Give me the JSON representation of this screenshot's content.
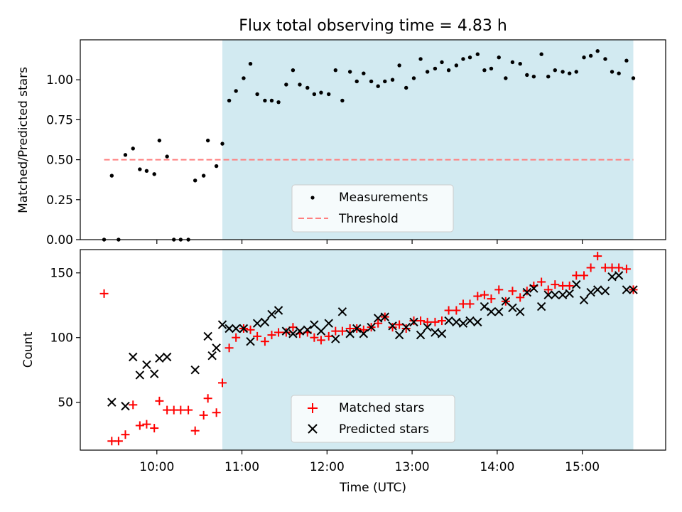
{
  "chart_data": [
    {
      "type": "scatter",
      "title": "Flux total observing time = 4.83 h",
      "xlabel": "",
      "ylabel": "Matched/Predicted stars",
      "ylim": [
        0,
        1.25
      ],
      "yticks": [
        "0.00",
        "0.25",
        "0.50",
        "0.75",
        "1.00"
      ],
      "shaded_span_hours": [
        10.77,
        15.6
      ],
      "shade_color": "#add8e6",
      "threshold": {
        "name": "Threshold",
        "value": 0.5,
        "x_range": [
          9.38,
          15.6
        ],
        "color": "#ff7f7f",
        "style": "dashed"
      },
      "legend": {
        "location": "lower center",
        "entries": [
          "Measurements",
          "Threshold"
        ]
      },
      "series": [
        {
          "name": "Measurements",
          "color": "#000000",
          "marker": "dot",
          "x": [
            9.38,
            9.47,
            9.55,
            9.63,
            9.72,
            9.8,
            9.88,
            9.97,
            10.03,
            10.12,
            10.2,
            10.28,
            10.37,
            10.45,
            10.55,
            10.6,
            10.7,
            10.77,
            10.85,
            10.93,
            11.02,
            11.1,
            11.18,
            11.27,
            11.35,
            11.43,
            11.52,
            11.6,
            11.68,
            11.77,
            11.85,
            11.93,
            12.02,
            12.1,
            12.18,
            12.27,
            12.35,
            12.43,
            12.52,
            12.6,
            12.68,
            12.77,
            12.85,
            12.93,
            13.02,
            13.1,
            13.18,
            13.27,
            13.35,
            13.43,
            13.52,
            13.6,
            13.68,
            13.77,
            13.85,
            13.93,
            14.02,
            14.1,
            14.18,
            14.27,
            14.35,
            14.43,
            14.52,
            14.6,
            14.68,
            14.77,
            14.85,
            14.93,
            15.02,
            15.1,
            15.18,
            15.27,
            15.35,
            15.43,
            15.52,
            15.6
          ],
          "y": [
            0.0,
            0.4,
            0.0,
            0.53,
            0.57,
            0.44,
            0.43,
            0.41,
            0.62,
            0.52,
            0.0,
            0.0,
            0.0,
            0.37,
            0.4,
            0.62,
            0.46,
            0.6,
            0.87,
            0.93,
            1.01,
            1.1,
            0.91,
            0.87,
            0.87,
            0.86,
            0.97,
            1.06,
            0.97,
            0.95,
            0.91,
            0.92,
            0.91,
            1.06,
            0.87,
            1.05,
            0.99,
            1.04,
            0.99,
            0.96,
            0.99,
            1.0,
            1.09,
            0.95,
            1.01,
            1.13,
            1.05,
            1.07,
            1.11,
            1.06,
            1.09,
            1.13,
            1.14,
            1.16,
            1.06,
            1.07,
            1.14,
            1.01,
            1.11,
            1.1,
            1.03,
            1.02,
            1.16,
            1.02,
            1.06,
            1.05,
            1.04,
            1.05,
            1.14,
            1.15,
            1.18,
            1.13,
            1.05,
            1.04,
            1.12,
            1.01
          ]
        }
      ]
    },
    {
      "type": "scatter",
      "title": "",
      "xlabel": "Time (UTC)",
      "ylabel": "Count",
      "ylim": [
        13,
        168
      ],
      "yticks": [
        "50",
        "100",
        "150"
      ],
      "xlim_hours": [
        9.1,
        15.98
      ],
      "xticks": [
        "10:00",
        "11:00",
        "12:00",
        "13:00",
        "14:00",
        "15:00"
      ],
      "shaded_span_hours": [
        10.77,
        15.6
      ],
      "shade_color": "#add8e6",
      "legend": {
        "location": "lower center",
        "entries": [
          "Matched stars",
          "Predicted stars"
        ]
      },
      "series": [
        {
          "name": "Matched stars",
          "color": "#ff0000",
          "marker": "plus",
          "x": [
            9.38,
            9.47,
            9.55,
            9.63,
            9.72,
            9.8,
            9.88,
            9.97,
            10.03,
            10.12,
            10.2,
            10.28,
            10.37,
            10.45,
            10.55,
            10.6,
            10.7,
            10.77,
            10.85,
            10.93,
            11.02,
            11.1,
            11.18,
            11.27,
            11.35,
            11.43,
            11.52,
            11.6,
            11.68,
            11.77,
            11.85,
            11.93,
            12.02,
            12.1,
            12.18,
            12.27,
            12.35,
            12.43,
            12.52,
            12.6,
            12.68,
            12.77,
            12.85,
            12.93,
            13.02,
            13.1,
            13.18,
            13.27,
            13.35,
            13.43,
            13.52,
            13.6,
            13.68,
            13.77,
            13.85,
            13.93,
            14.02,
            14.1,
            14.18,
            14.27,
            14.35,
            14.43,
            14.52,
            14.6,
            14.68,
            14.77,
            14.85,
            14.93,
            15.02,
            15.1,
            15.18,
            15.27,
            15.35,
            15.43,
            15.52,
            15.6
          ],
          "y": [
            134,
            20,
            20,
            25,
            48,
            32,
            33,
            30,
            51,
            44,
            44,
            44,
            44,
            28,
            40,
            53,
            42,
            65,
            92,
            100,
            107,
            106,
            101,
            97,
            102,
            104,
            104,
            108,
            103,
            104,
            100,
            98,
            101,
            105,
            105,
            107,
            107,
            106,
            108,
            111,
            116,
            108,
            110,
            107,
            113,
            113,
            112,
            112,
            113,
            121,
            121,
            126,
            126,
            132,
            133,
            130,
            137,
            128,
            136,
            131,
            136,
            140,
            143,
            137,
            141,
            140,
            140,
            148,
            148,
            154,
            163,
            154,
            154,
            154,
            153,
            137
          ]
        },
        {
          "name": "Predicted stars",
          "color": "#000000",
          "marker": "x",
          "x": [
            9.47,
            9.63,
            9.72,
            9.8,
            9.88,
            9.97,
            10.03,
            10.12,
            10.45,
            10.6,
            10.65,
            10.7,
            10.77,
            10.85,
            10.93,
            11.02,
            11.1,
            11.18,
            11.27,
            11.35,
            11.43,
            11.52,
            11.6,
            11.68,
            11.77,
            11.85,
            11.93,
            12.02,
            12.1,
            12.18,
            12.27,
            12.35,
            12.43,
            12.52,
            12.6,
            12.68,
            12.77,
            12.85,
            12.93,
            13.02,
            13.1,
            13.18,
            13.27,
            13.35,
            13.43,
            13.52,
            13.6,
            13.68,
            13.77,
            13.85,
            13.93,
            14.02,
            14.1,
            14.18,
            14.27,
            14.35,
            14.43,
            14.52,
            14.6,
            14.68,
            14.77,
            14.85,
            14.93,
            15.02,
            15.1,
            15.18,
            15.27,
            15.35,
            15.43,
            15.52,
            15.6
          ],
          "y": [
            50,
            47,
            85,
            71,
            79,
            72,
            84,
            85,
            75,
            101,
            86,
            92,
            110,
            107,
            107,
            107,
            97,
            111,
            112,
            118,
            121,
            105,
            103,
            105,
            106,
            110,
            105,
            111,
            99,
            120,
            103,
            107,
            103,
            108,
            115,
            116,
            109,
            102,
            108,
            112,
            102,
            108,
            104,
            103,
            113,
            112,
            111,
            113,
            112,
            124,
            120,
            120,
            128,
            123,
            120,
            135,
            138,
            124,
            133,
            133,
            133,
            134,
            141,
            129,
            135,
            137,
            136,
            147,
            148,
            137,
            137
          ]
        }
      ]
    }
  ]
}
